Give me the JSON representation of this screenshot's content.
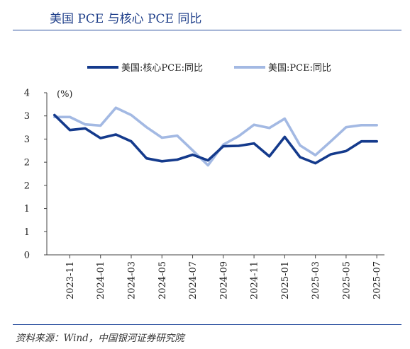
{
  "header": {
    "title": "美国 PCE 与核心 PCE 同比"
  },
  "footer": {
    "source": "资料来源：Wind，中国银河证券研究院"
  },
  "chart_data": {
    "type": "line",
    "unit_label": "(%)",
    "x": [
      "2023-10",
      "2023-11",
      "2023-12",
      "2024-01",
      "2024-02",
      "2024-03",
      "2024-04",
      "2024-05",
      "2024-06",
      "2024-07",
      "2024-08",
      "2024-09",
      "2024-10",
      "2024-11",
      "2024-12",
      "2025-01",
      "2025-02",
      "2025-03",
      "2025-04",
      "2025-05",
      "2025-06",
      "2025-07"
    ],
    "xtick_labels": [
      "2023-11",
      "2024-01",
      "2024-03",
      "2024-05",
      "2024-07",
      "2024-09",
      "2024-11",
      "2025-01",
      "2025-03",
      "2025-05",
      "2025-07"
    ],
    "ytick_labels": [
      "0",
      "1",
      "1",
      "2",
      "2",
      "3",
      "3",
      "4"
    ],
    "ylim": [
      0,
      4
    ],
    "grid": false,
    "legend_position": "top",
    "series": [
      {
        "name": "美国:核心PCE:同比",
        "color": "#143a8c",
        "values": [
          3.45,
          3.08,
          3.12,
          2.88,
          2.97,
          2.8,
          2.38,
          2.31,
          2.35,
          2.47,
          2.33,
          2.68,
          2.69,
          2.75,
          2.43,
          2.91,
          2.41,
          2.26,
          2.48,
          2.56,
          2.8,
          2.8
        ]
      },
      {
        "name": "美国:PCE:同比",
        "color": "#a3b9e3",
        "values": [
          3.4,
          3.4,
          3.22,
          3.19,
          3.63,
          3.45,
          3.15,
          2.89,
          2.94,
          2.58,
          2.21,
          2.72,
          2.93,
          3.21,
          3.13,
          3.36,
          2.7,
          2.46,
          2.8,
          3.15,
          3.2,
          3.2
        ]
      }
    ]
  }
}
